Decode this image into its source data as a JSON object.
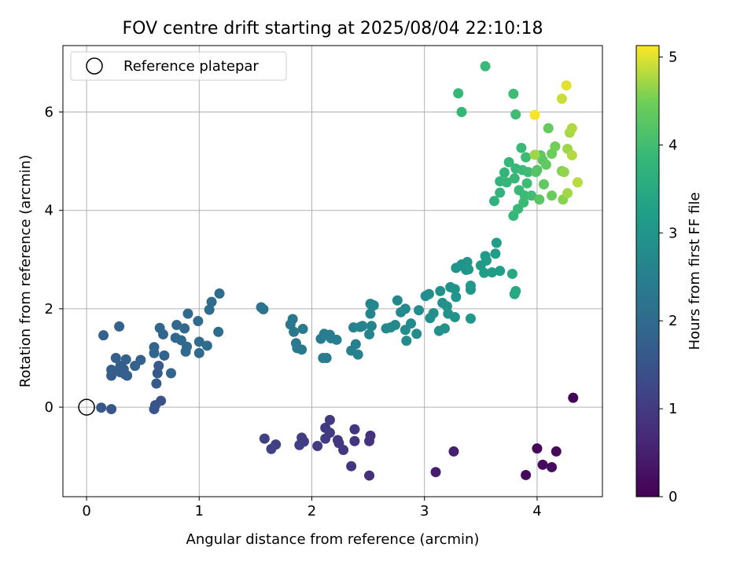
{
  "chart_data": {
    "type": "scatter",
    "title": "FOV centre drift starting at 2025/08/04 22:10:18",
    "xlabel": "Angular distance from reference (arcmin)",
    "ylabel": "Rotation from reference (arcmin)",
    "xlim": [
      -0.21,
      4.58
    ],
    "ylim": [
      -1.82,
      7.35
    ],
    "xticks": [
      "0",
      "1",
      "2",
      "3",
      "4"
    ],
    "yticks": [
      "0",
      "2",
      "4",
      "6"
    ],
    "grid": true,
    "legend": {
      "position": "top-left",
      "entries": [
        "Reference platepar"
      ]
    },
    "reference_point": {
      "x": 0,
      "y": 0
    },
    "colorbar": {
      "label": "Hours from first FF file",
      "min": 0,
      "max": 5.13,
      "ticks": [
        "0",
        "1",
        "2",
        "3",
        "4",
        "5"
      ],
      "colormap": "viridis"
    },
    "points": [
      {
        "x": 4.32,
        "y": 0.19,
        "t": 0.05
      },
      {
        "x": 4.0,
        "y": -0.84,
        "t": 0.1
      },
      {
        "x": 4.17,
        "y": -0.9,
        "t": 0.12
      },
      {
        "x": 3.9,
        "y": -1.38,
        "t": 0.14
      },
      {
        "x": 4.05,
        "y": -1.17,
        "t": 0.17
      },
      {
        "x": 4.13,
        "y": -1.22,
        "t": 0.19
      },
      {
        "x": 3.1,
        "y": -1.32,
        "t": 0.45
      },
      {
        "x": 3.26,
        "y": -0.9,
        "t": 0.5
      },
      {
        "x": 2.51,
        "y": -1.39,
        "t": 0.8
      },
      {
        "x": 2.52,
        "y": -0.58,
        "t": 0.83
      },
      {
        "x": 2.51,
        "y": -0.69,
        "t": 0.85
      },
      {
        "x": 2.38,
        "y": -0.45,
        "t": 0.87
      },
      {
        "x": 2.38,
        "y": -0.69,
        "t": 0.88
      },
      {
        "x": 2.35,
        "y": -1.2,
        "t": 0.9
      },
      {
        "x": 2.28,
        "y": -0.87,
        "t": 0.93
      },
      {
        "x": 2.24,
        "y": -0.73,
        "t": 0.95
      },
      {
        "x": 2.23,
        "y": -0.67,
        "t": 0.96
      },
      {
        "x": 2.16,
        "y": -0.26,
        "t": 0.98
      },
      {
        "x": 2.16,
        "y": -0.52,
        "t": 0.99
      },
      {
        "x": 2.12,
        "y": -0.42,
        "t": 1.0
      },
      {
        "x": 2.12,
        "y": -0.64,
        "t": 1.01
      },
      {
        "x": 2.05,
        "y": -0.79,
        "t": 1.03
      },
      {
        "x": 1.93,
        "y": -0.7,
        "t": 1.05
      },
      {
        "x": 1.91,
        "y": -0.62,
        "t": 1.06
      },
      {
        "x": 1.89,
        "y": -0.77,
        "t": 1.07
      },
      {
        "x": 1.68,
        "y": -0.76,
        "t": 1.1
      },
      {
        "x": 1.64,
        "y": -0.85,
        "t": 1.12
      },
      {
        "x": 1.58,
        "y": -0.64,
        "t": 1.13
      },
      {
        "x": 0.66,
        "y": 0.13,
        "t": 1.5
      },
      {
        "x": 0.61,
        "y": 0.04,
        "t": 1.52
      },
      {
        "x": 0.6,
        "y": -0.04,
        "t": 1.53
      },
      {
        "x": 0.22,
        "y": -0.04,
        "t": 1.56
      },
      {
        "x": 0.13,
        "y": -0.01,
        "t": 1.58
      },
      {
        "x": 0.62,
        "y": 0.48,
        "t": 1.62
      },
      {
        "x": 0.63,
        "y": 0.69,
        "t": 1.64
      },
      {
        "x": 0.64,
        "y": 0.84,
        "t": 1.66
      },
      {
        "x": 0.22,
        "y": 0.64,
        "t": 1.68
      },
      {
        "x": 0.22,
        "y": 0.76,
        "t": 1.69
      },
      {
        "x": 0.3,
        "y": 0.71,
        "t": 1.7
      },
      {
        "x": 0.3,
        "y": 0.84,
        "t": 1.71
      },
      {
        "x": 0.33,
        "y": 0.77,
        "t": 1.72
      },
      {
        "x": 0.34,
        "y": 0.67,
        "t": 1.73
      },
      {
        "x": 0.36,
        "y": 0.64,
        "t": 1.74
      },
      {
        "x": 0.26,
        "y": 1.0,
        "t": 1.75
      },
      {
        "x": 0.35,
        "y": 0.97,
        "t": 1.76
      },
      {
        "x": 0.43,
        "y": 0.84,
        "t": 1.77
      },
      {
        "x": 0.48,
        "y": 0.96,
        "t": 1.78
      },
      {
        "x": 0.15,
        "y": 1.46,
        "t": 1.79
      },
      {
        "x": 0.29,
        "y": 1.64,
        "t": 1.8
      },
      {
        "x": 0.6,
        "y": 1.22,
        "t": 1.85
      },
      {
        "x": 0.6,
        "y": 1.1,
        "t": 1.86
      },
      {
        "x": 0.69,
        "y": 1.05,
        "t": 1.87
      },
      {
        "x": 0.75,
        "y": 0.69,
        "t": 1.88
      },
      {
        "x": 0.68,
        "y": 1.48,
        "t": 1.89
      },
      {
        "x": 0.65,
        "y": 1.61,
        "t": 1.9
      },
      {
        "x": 0.79,
        "y": 1.41,
        "t": 1.91
      },
      {
        "x": 0.8,
        "y": 1.67,
        "t": 1.92
      },
      {
        "x": 0.84,
        "y": 1.36,
        "t": 1.93
      },
      {
        "x": 0.87,
        "y": 1.6,
        "t": 1.94
      },
      {
        "x": 0.88,
        "y": 1.13,
        "t": 1.95
      },
      {
        "x": 0.89,
        "y": 1.23,
        "t": 1.96
      },
      {
        "x": 0.9,
        "y": 1.9,
        "t": 1.97
      },
      {
        "x": 1.0,
        "y": 1.1,
        "t": 1.98
      },
      {
        "x": 1.0,
        "y": 1.33,
        "t": 1.99
      },
      {
        "x": 0.99,
        "y": 1.75,
        "t": 2.0
      },
      {
        "x": 1.07,
        "y": 1.25,
        "t": 2.01
      },
      {
        "x": 1.09,
        "y": 1.98,
        "t": 2.02
      },
      {
        "x": 1.11,
        "y": 2.14,
        "t": 2.03
      },
      {
        "x": 1.17,
        "y": 1.53,
        "t": 2.04
      },
      {
        "x": 1.18,
        "y": 2.31,
        "t": 2.05
      },
      {
        "x": 1.55,
        "y": 2.03,
        "t": 2.2
      },
      {
        "x": 1.57,
        "y": 1.99,
        "t": 2.22
      },
      {
        "x": 1.81,
        "y": 1.68,
        "t": 2.3
      },
      {
        "x": 1.83,
        "y": 1.79,
        "t": 2.31
      },
      {
        "x": 1.84,
        "y": 1.53,
        "t": 2.32
      },
      {
        "x": 1.86,
        "y": 1.3,
        "t": 2.33
      },
      {
        "x": 1.87,
        "y": 1.2,
        "t": 2.34
      },
      {
        "x": 1.91,
        "y": 1.17,
        "t": 2.35
      },
      {
        "x": 1.92,
        "y": 1.59,
        "t": 2.36
      },
      {
        "x": 2.08,
        "y": 1.39,
        "t": 2.4
      },
      {
        "x": 2.1,
        "y": 1.0,
        "t": 2.41
      },
      {
        "x": 2.13,
        "y": 1.0,
        "t": 2.42
      },
      {
        "x": 2.11,
        "y": 1.49,
        "t": 2.43
      },
      {
        "x": 2.16,
        "y": 1.47,
        "t": 2.44
      },
      {
        "x": 2.17,
        "y": 1.4,
        "t": 2.45
      },
      {
        "x": 2.22,
        "y": 1.37,
        "t": 2.46
      },
      {
        "x": 2.35,
        "y": 1.15,
        "t": 2.55
      },
      {
        "x": 2.37,
        "y": 1.62,
        "t": 2.56
      },
      {
        "x": 2.39,
        "y": 1.28,
        "t": 2.57
      },
      {
        "x": 2.41,
        "y": 1.07,
        "t": 2.58
      },
      {
        "x": 2.43,
        "y": 1.63,
        "t": 2.59
      },
      {
        "x": 2.45,
        "y": 1.65,
        "t": 2.6
      },
      {
        "x": 2.51,
        "y": 1.48,
        "t": 2.61
      },
      {
        "x": 2.52,
        "y": 1.9,
        "t": 2.62
      },
      {
        "x": 2.52,
        "y": 2.1,
        "t": 2.63
      },
      {
        "x": 2.53,
        "y": 1.65,
        "t": 2.64
      },
      {
        "x": 2.55,
        "y": 2.07,
        "t": 2.65
      },
      {
        "x": 2.66,
        "y": 1.6,
        "t": 2.7
      },
      {
        "x": 2.7,
        "y": 1.62,
        "t": 2.71
      },
      {
        "x": 2.74,
        "y": 1.67,
        "t": 2.72
      },
      {
        "x": 2.76,
        "y": 2.17,
        "t": 2.73
      },
      {
        "x": 2.79,
        "y": 1.93,
        "t": 2.74
      },
      {
        "x": 2.83,
        "y": 2.0,
        "t": 2.75
      },
      {
        "x": 2.83,
        "y": 1.57,
        "t": 2.76
      },
      {
        "x": 2.84,
        "y": 1.35,
        "t": 2.77
      },
      {
        "x": 2.88,
        "y": 1.7,
        "t": 2.78
      },
      {
        "x": 2.93,
        "y": 1.49,
        "t": 2.79
      },
      {
        "x": 2.95,
        "y": 1.97,
        "t": 2.8
      },
      {
        "x": 3.01,
        "y": 2.26,
        "t": 2.85
      },
      {
        "x": 3.04,
        "y": 2.3,
        "t": 2.86
      },
      {
        "x": 3.05,
        "y": 1.81,
        "t": 2.87
      },
      {
        "x": 3.08,
        "y": 1.91,
        "t": 2.88
      },
      {
        "x": 3.13,
        "y": 1.55,
        "t": 2.89
      },
      {
        "x": 3.14,
        "y": 2.36,
        "t": 2.9
      },
      {
        "x": 3.16,
        "y": 2.12,
        "t": 2.91
      },
      {
        "x": 3.18,
        "y": 1.6,
        "t": 2.92
      },
      {
        "x": 3.2,
        "y": 2.05,
        "t": 2.93
      },
      {
        "x": 3.21,
        "y": 1.9,
        "t": 2.94
      },
      {
        "x": 3.23,
        "y": 2.44,
        "t": 2.95
      },
      {
        "x": 3.27,
        "y": 2.4,
        "t": 2.96
      },
      {
        "x": 3.27,
        "y": 1.83,
        "t": 2.97
      },
      {
        "x": 3.28,
        "y": 2.24,
        "t": 2.98
      },
      {
        "x": 3.28,
        "y": 2.83,
        "t": 2.99
      },
      {
        "x": 3.33,
        "y": 2.9,
        "t": 3.0
      },
      {
        "x": 3.35,
        "y": 2.85,
        "t": 3.01
      },
      {
        "x": 3.37,
        "y": 2.79,
        "t": 3.02
      },
      {
        "x": 3.38,
        "y": 2.95,
        "t": 3.03
      },
      {
        "x": 3.39,
        "y": 2.8,
        "t": 3.04
      },
      {
        "x": 3.41,
        "y": 2.39,
        "t": 3.05
      },
      {
        "x": 3.41,
        "y": 2.47,
        "t": 3.06
      },
      {
        "x": 3.41,
        "y": 1.8,
        "t": 3.07
      },
      {
        "x": 3.5,
        "y": 2.88,
        "t": 3.15
      },
      {
        "x": 3.53,
        "y": 2.73,
        "t": 3.16
      },
      {
        "x": 3.54,
        "y": 3.07,
        "t": 3.17
      },
      {
        "x": 3.55,
        "y": 2.98,
        "t": 3.18
      },
      {
        "x": 3.6,
        "y": 2.74,
        "t": 3.19
      },
      {
        "x": 3.63,
        "y": 3.12,
        "t": 3.2
      },
      {
        "x": 3.64,
        "y": 3.34,
        "t": 3.21
      },
      {
        "x": 3.67,
        "y": 2.77,
        "t": 3.22
      },
      {
        "x": 3.78,
        "y": 2.71,
        "t": 3.45
      },
      {
        "x": 3.8,
        "y": 2.3,
        "t": 3.47
      },
      {
        "x": 3.81,
        "y": 2.36,
        "t": 3.48
      },
      {
        "x": 3.62,
        "y": 4.19,
        "t": 3.7
      },
      {
        "x": 3.67,
        "y": 4.36,
        "t": 3.75
      },
      {
        "x": 3.67,
        "y": 4.59,
        "t": 3.78
      },
      {
        "x": 3.71,
        "y": 4.77,
        "t": 3.8
      },
      {
        "x": 3.73,
        "y": 4.57,
        "t": 3.82
      },
      {
        "x": 3.75,
        "y": 4.98,
        "t": 3.84
      },
      {
        "x": 3.79,
        "y": 3.89,
        "t": 3.85
      },
      {
        "x": 3.8,
        "y": 4.65,
        "t": 3.86
      },
      {
        "x": 3.81,
        "y": 4.85,
        "t": 3.87
      },
      {
        "x": 3.83,
        "y": 4.03,
        "t": 3.88
      },
      {
        "x": 3.84,
        "y": 4.41,
        "t": 3.89
      },
      {
        "x": 3.86,
        "y": 5.27,
        "t": 3.9
      },
      {
        "x": 3.87,
        "y": 4.82,
        "t": 3.91
      },
      {
        "x": 3.88,
        "y": 4.16,
        "t": 3.92
      },
      {
        "x": 3.89,
        "y": 4.3,
        "t": 3.93
      },
      {
        "x": 3.9,
        "y": 5.08,
        "t": 3.94
      },
      {
        "x": 3.91,
        "y": 4.55,
        "t": 3.95
      },
      {
        "x": 3.92,
        "y": 4.78,
        "t": 3.96
      },
      {
        "x": 3.95,
        "y": 4.3,
        "t": 3.98
      },
      {
        "x": 3.3,
        "y": 6.38,
        "t": 3.85
      },
      {
        "x": 3.33,
        "y": 6.0,
        "t": 3.86
      },
      {
        "x": 3.54,
        "y": 6.93,
        "t": 3.9
      },
      {
        "x": 3.79,
        "y": 6.37,
        "t": 3.95
      },
      {
        "x": 3.81,
        "y": 5.95,
        "t": 3.97
      },
      {
        "x": 3.99,
        "y": 4.78,
        "t": 4.2
      },
      {
        "x": 4.0,
        "y": 4.82,
        "t": 4.22
      },
      {
        "x": 4.02,
        "y": 4.22,
        "t": 4.25
      },
      {
        "x": 4.03,
        "y": 5.12,
        "t": 4.28
      },
      {
        "x": 4.05,
        "y": 5.02,
        "t": 4.3
      },
      {
        "x": 4.06,
        "y": 4.53,
        "t": 4.32
      },
      {
        "x": 4.08,
        "y": 4.93,
        "t": 4.35
      },
      {
        "x": 4.1,
        "y": 5.67,
        "t": 4.38
      },
      {
        "x": 4.13,
        "y": 4.3,
        "t": 4.42
      },
      {
        "x": 4.13,
        "y": 5.15,
        "t": 4.45
      },
      {
        "x": 4.16,
        "y": 5.3,
        "t": 4.5
      },
      {
        "x": 4.22,
        "y": 4.8,
        "t": 4.55
      },
      {
        "x": 4.23,
        "y": 4.22,
        "t": 4.6
      },
      {
        "x": 4.24,
        "y": 4.78,
        "t": 4.65
      },
      {
        "x": 4.27,
        "y": 5.25,
        "t": 4.7
      },
      {
        "x": 4.27,
        "y": 4.35,
        "t": 4.72
      },
      {
        "x": 4.29,
        "y": 5.58,
        "t": 4.75
      },
      {
        "x": 4.31,
        "y": 5.67,
        "t": 4.78
      },
      {
        "x": 4.31,
        "y": 5.12,
        "t": 4.8
      },
      {
        "x": 4.36,
        "y": 4.57,
        "t": 4.82
      },
      {
        "x": 3.98,
        "y": 5.13,
        "t": 4.7
      },
      {
        "x": 4.22,
        "y": 6.27,
        "t": 4.9
      },
      {
        "x": 4.26,
        "y": 6.54,
        "t": 5.0
      },
      {
        "x": 3.98,
        "y": 5.94,
        "t": 5.1
      }
    ]
  }
}
